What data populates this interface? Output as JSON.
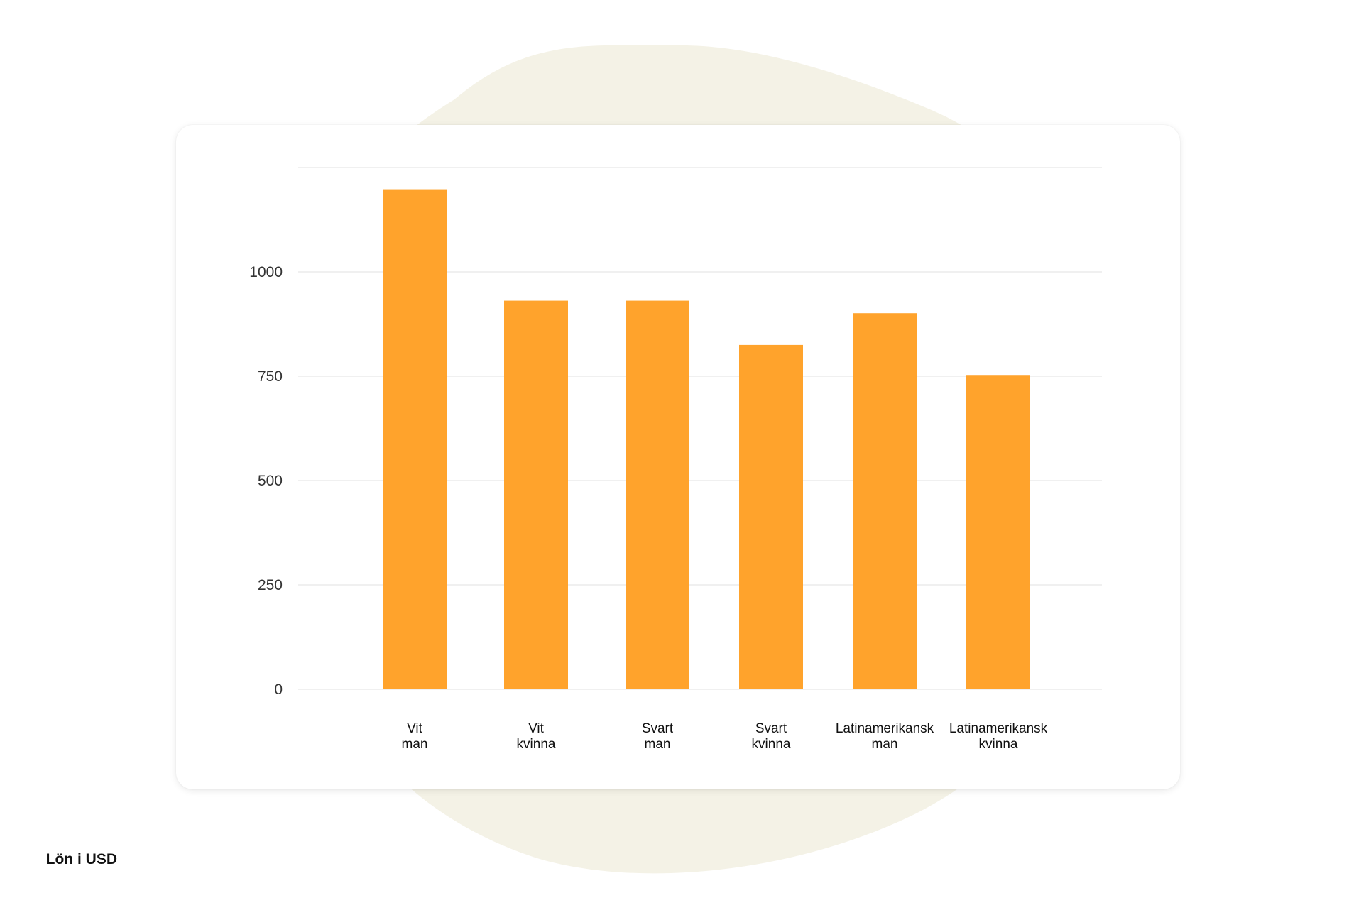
{
  "chart_data": {
    "type": "bar",
    "categories": [
      [
        "Vit",
        "man"
      ],
      [
        "Vit",
        "kvinna"
      ],
      [
        "Svart",
        "man"
      ],
      [
        "Svart",
        "kvinna"
      ],
      [
        "Latinamerikansk",
        "man"
      ],
      [
        "Latinamerikansk",
        "kvinna"
      ]
    ],
    "values": [
      1198,
      931,
      931,
      825,
      901,
      753
    ],
    "ylabel": "Lön i USD",
    "yticks": [
      0,
      250,
      500,
      750,
      1000
    ],
    "ylim": [
      0,
      1250
    ],
    "grid": true,
    "bar_color": "#FFA32C",
    "grid_color": "#EBEBEB"
  },
  "background_blob_color": "#F4F2E6"
}
